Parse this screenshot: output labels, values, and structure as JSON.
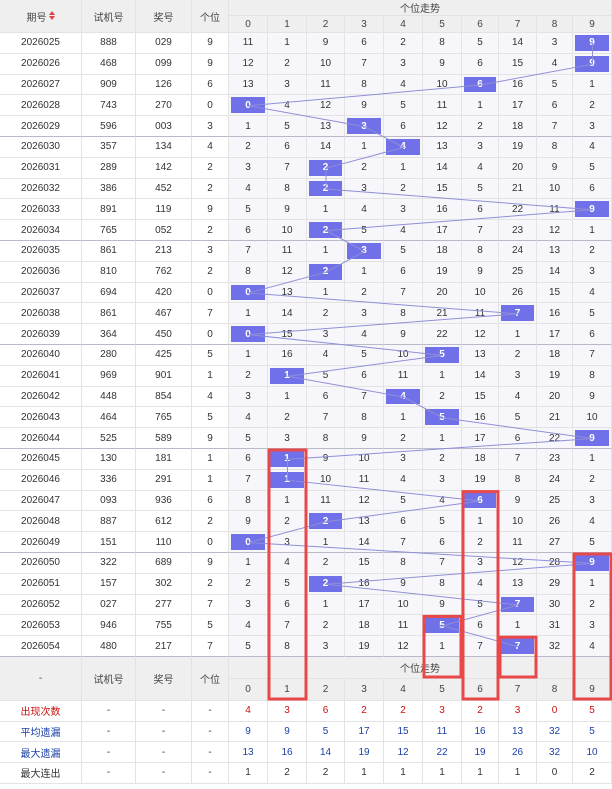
{
  "header": {
    "period": "期号",
    "trial": "试机号",
    "prize": "奖号",
    "unit": "个位",
    "trend": "个位走势",
    "digits": [
      "0",
      "1",
      "2",
      "3",
      "4",
      "5",
      "6",
      "7",
      "8",
      "9"
    ]
  },
  "footer_header": {
    "period": "-",
    "trial": "试机号",
    "prize": "奖号",
    "unit": "个位",
    "trend": "个位走势",
    "digits": [
      "0",
      "1",
      "2",
      "3",
      "4",
      "5",
      "6",
      "7",
      "8",
      "9"
    ]
  },
  "chart_data": {
    "type": "table",
    "title": "个位走势",
    "rows": [
      {
        "period": "2026025",
        "trial": "888",
        "prize": "029",
        "unit": 9,
        "cells": [
          11,
          1,
          9,
          6,
          2,
          8,
          5,
          14,
          3,
          9
        ]
      },
      {
        "period": "2026026",
        "trial": "468",
        "prize": "099",
        "unit": 9,
        "cells": [
          12,
          2,
          10,
          7,
          3,
          9,
          6,
          15,
          4,
          9
        ]
      },
      {
        "period": "2026027",
        "trial": "909",
        "prize": "126",
        "unit": 6,
        "cells": [
          13,
          3,
          11,
          8,
          4,
          10,
          6,
          16,
          5,
          1
        ]
      },
      {
        "period": "2026028",
        "trial": "743",
        "prize": "270",
        "unit": 0,
        "cells": [
          0,
          4,
          12,
          9,
          5,
          11,
          1,
          17,
          6,
          2
        ]
      },
      {
        "period": "2026029",
        "trial": "596",
        "prize": "003",
        "unit": 3,
        "cells": [
          1,
          5,
          13,
          3,
          6,
          12,
          2,
          18,
          7,
          3
        ]
      },
      {
        "period": "2026030",
        "trial": "357",
        "prize": "134",
        "unit": 4,
        "cells": [
          2,
          6,
          14,
          1,
          4,
          13,
          3,
          19,
          8,
          4
        ]
      },
      {
        "period": "2026031",
        "trial": "289",
        "prize": "142",
        "unit": 2,
        "cells": [
          3,
          7,
          2,
          2,
          1,
          14,
          4,
          20,
          9,
          5
        ]
      },
      {
        "period": "2026032",
        "trial": "386",
        "prize": "452",
        "unit": 2,
        "cells": [
          4,
          8,
          2,
          3,
          2,
          15,
          5,
          21,
          10,
          6
        ]
      },
      {
        "period": "2026033",
        "trial": "891",
        "prize": "119",
        "unit": 9,
        "cells": [
          5,
          9,
          1,
          4,
          3,
          16,
          6,
          22,
          11,
          9
        ]
      },
      {
        "period": "2026034",
        "trial": "765",
        "prize": "052",
        "unit": 2,
        "cells": [
          6,
          10,
          2,
          5,
          4,
          17,
          7,
          23,
          12,
          1
        ]
      },
      {
        "period": "2026035",
        "trial": "861",
        "prize": "213",
        "unit": 3,
        "cells": [
          7,
          11,
          1,
          3,
          5,
          18,
          8,
          24,
          13,
          2
        ]
      },
      {
        "period": "2026036",
        "trial": "810",
        "prize": "762",
        "unit": 2,
        "cells": [
          8,
          12,
          2,
          1,
          6,
          19,
          9,
          25,
          14,
          3
        ]
      },
      {
        "period": "2026037",
        "trial": "694",
        "prize": "420",
        "unit": 0,
        "cells": [
          0,
          13,
          1,
          2,
          7,
          20,
          10,
          26,
          15,
          4
        ]
      },
      {
        "period": "2026038",
        "trial": "861",
        "prize": "467",
        "unit": 7,
        "cells": [
          1,
          14,
          2,
          3,
          8,
          21,
          11,
          7,
          16,
          5
        ]
      },
      {
        "period": "2026039",
        "trial": "364",
        "prize": "450",
        "unit": 0,
        "cells": [
          0,
          15,
          3,
          4,
          9,
          22,
          12,
          1,
          17,
          6
        ]
      },
      {
        "period": "2026040",
        "trial": "280",
        "prize": "425",
        "unit": 5,
        "cells": [
          1,
          16,
          4,
          5,
          10,
          5,
          13,
          2,
          18,
          7
        ]
      },
      {
        "period": "2026041",
        "trial": "969",
        "prize": "901",
        "unit": 1,
        "cells": [
          2,
          1,
          5,
          6,
          11,
          1,
          14,
          3,
          19,
          8
        ]
      },
      {
        "period": "2026042",
        "trial": "448",
        "prize": "854",
        "unit": 4,
        "cells": [
          3,
          1,
          6,
          7,
          4,
          2,
          15,
          4,
          20,
          9
        ]
      },
      {
        "period": "2026043",
        "trial": "464",
        "prize": "765",
        "unit": 5,
        "cells": [
          4,
          2,
          7,
          8,
          1,
          5,
          16,
          5,
          21,
          10
        ]
      },
      {
        "period": "2026044",
        "trial": "525",
        "prize": "589",
        "unit": 9,
        "cells": [
          5,
          3,
          8,
          9,
          2,
          1,
          17,
          6,
          22,
          9
        ]
      },
      {
        "period": "2026045",
        "trial": "130",
        "prize": "181",
        "unit": 1,
        "cells": [
          6,
          1,
          9,
          10,
          3,
          2,
          18,
          7,
          23,
          1
        ]
      },
      {
        "period": "2026046",
        "trial": "336",
        "prize": "291",
        "unit": 1,
        "cells": [
          7,
          1,
          10,
          11,
          4,
          3,
          19,
          8,
          24,
          2
        ]
      },
      {
        "period": "2026047",
        "trial": "093",
        "prize": "936",
        "unit": 6,
        "cells": [
          8,
          1,
          11,
          12,
          5,
          4,
          6,
          9,
          25,
          3
        ]
      },
      {
        "period": "2026048",
        "trial": "887",
        "prize": "612",
        "unit": 2,
        "cells": [
          9,
          2,
          2,
          13,
          6,
          5,
          1,
          10,
          26,
          4
        ]
      },
      {
        "period": "2026049",
        "trial": "151",
        "prize": "110",
        "unit": 0,
        "cells": [
          0,
          3,
          1,
          14,
          7,
          6,
          2,
          11,
          27,
          5
        ]
      },
      {
        "period": "2026050",
        "trial": "322",
        "prize": "689",
        "unit": 9,
        "cells": [
          1,
          4,
          2,
          15,
          8,
          7,
          3,
          12,
          28,
          9
        ]
      },
      {
        "period": "2026051",
        "trial": "157",
        "prize": "302",
        "unit": 2,
        "cells": [
          2,
          5,
          2,
          16,
          9,
          8,
          4,
          13,
          29,
          1
        ]
      },
      {
        "period": "2026052",
        "trial": "027",
        "prize": "277",
        "unit": 7,
        "cells": [
          3,
          6,
          1,
          17,
          10,
          9,
          5,
          7,
          30,
          2
        ]
      },
      {
        "period": "2026053",
        "trial": "946",
        "prize": "755",
        "unit": 5,
        "cells": [
          4,
          7,
          2,
          18,
          11,
          5,
          6,
          1,
          31,
          3
        ]
      },
      {
        "period": "2026054",
        "trial": "480",
        "prize": "217",
        "unit": 7,
        "cells": [
          5,
          8,
          3,
          19,
          12,
          1,
          7,
          7,
          32,
          4
        ]
      }
    ],
    "stats": [
      {
        "label": "出现次数",
        "color": "red",
        "values": [
          4,
          3,
          6,
          2,
          2,
          3,
          2,
          3,
          0,
          5
        ]
      },
      {
        "label": "平均遗漏",
        "color": "blue",
        "values": [
          9,
          9,
          5,
          17,
          15,
          11,
          16,
          13,
          32,
          5
        ]
      },
      {
        "label": "最大遗漏",
        "color": "blue",
        "values": [
          13,
          16,
          14,
          19,
          12,
          22,
          19,
          26,
          32,
          10
        ]
      },
      {
        "label": "最大连出",
        "color": "dark",
        "values": [
          1,
          2,
          2,
          1,
          1,
          1,
          1,
          1,
          0,
          2
        ]
      }
    ],
    "highlight_columns": [
      "1",
      "6",
      "9"
    ],
    "highlight_color": "#e84848",
    "hit_color": "#7070e8",
    "line_color": "#8f8fd8"
  }
}
